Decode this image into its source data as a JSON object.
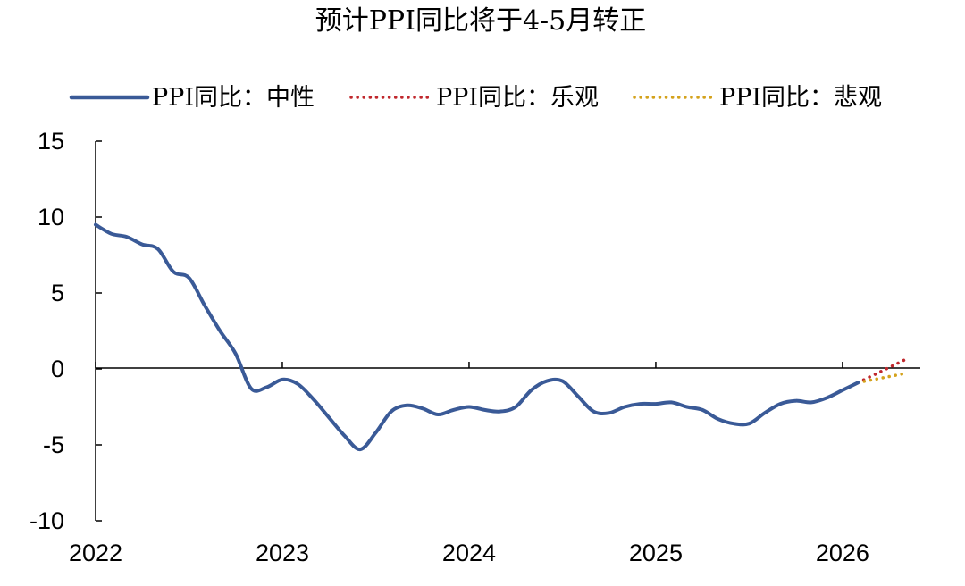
{
  "chart_data": {
    "type": "line",
    "title": "预计PPI同比将于4-5月转正",
    "xlabel": "",
    "ylabel": "",
    "ylim": [
      -10,
      15
    ],
    "yticks": [
      15,
      10,
      5,
      0,
      -5,
      -10
    ],
    "xlim": [
      "2022-01",
      "2026-06"
    ],
    "xticks": [
      "2022",
      "2023",
      "2024",
      "2025",
      "2026"
    ],
    "grid": false,
    "legend_position": "top",
    "series": [
      {
        "name": "PPI同比：中性",
        "style": "solid",
        "color": "#3A5A97",
        "points": [
          [
            "2022-01",
            9.5
          ],
          [
            "2022-02",
            8.9
          ],
          [
            "2022-03",
            8.7
          ],
          [
            "2022-04",
            8.2
          ],
          [
            "2022-05",
            7.9
          ],
          [
            "2022-06",
            6.4
          ],
          [
            "2022-07",
            6.0
          ],
          [
            "2022-08",
            4.2
          ],
          [
            "2022-09",
            2.5
          ],
          [
            "2022-10",
            1.0
          ],
          [
            "2022-11",
            -1.3
          ],
          [
            "2022-12",
            -1.2
          ],
          [
            "2023-01",
            -0.7
          ],
          [
            "2023-02",
            -1.0
          ],
          [
            "2023-03",
            -2.0
          ],
          [
            "2023-04",
            -3.2
          ],
          [
            "2023-05",
            -4.4
          ],
          [
            "2023-06",
            -5.3
          ],
          [
            "2023-07",
            -4.2
          ],
          [
            "2023-08",
            -2.8
          ],
          [
            "2023-09",
            -2.4
          ],
          [
            "2023-10",
            -2.6
          ],
          [
            "2023-11",
            -3.0
          ],
          [
            "2023-12",
            -2.7
          ],
          [
            "2024-01",
            -2.5
          ],
          [
            "2024-02",
            -2.7
          ],
          [
            "2024-03",
            -2.8
          ],
          [
            "2024-04",
            -2.5
          ],
          [
            "2024-05",
            -1.4
          ],
          [
            "2024-06",
            -0.8
          ],
          [
            "2024-07",
            -0.8
          ],
          [
            "2024-08",
            -1.8
          ],
          [
            "2024-09",
            -2.8
          ],
          [
            "2024-10",
            -2.9
          ],
          [
            "2024-11",
            -2.5
          ],
          [
            "2024-12",
            -2.3
          ],
          [
            "2025-01",
            -2.3
          ],
          [
            "2025-02",
            -2.2
          ],
          [
            "2025-03",
            -2.5
          ],
          [
            "2025-04",
            -2.7
          ],
          [
            "2025-05",
            -3.3
          ],
          [
            "2025-06",
            -3.6
          ],
          [
            "2025-07",
            -3.6
          ],
          [
            "2025-08",
            -2.9
          ],
          [
            "2025-09",
            -2.3
          ],
          [
            "2025-10",
            -2.1
          ],
          [
            "2025-11",
            -2.2
          ],
          [
            "2025-12",
            -1.9
          ],
          [
            "2026-01",
            -1.4
          ],
          [
            "2026-02",
            -0.9
          ]
        ]
      },
      {
        "name": "PPI同比：乐观",
        "style": "dotted",
        "color": "#C0282D",
        "points": [
          [
            "2026-02",
            -0.9
          ],
          [
            "2026-03",
            -0.4
          ],
          [
            "2026-04",
            0.1
          ],
          [
            "2026-05",
            0.6
          ]
        ]
      },
      {
        "name": "PPI同比：悲观",
        "style": "dotted",
        "color": "#D4A21C",
        "points": [
          [
            "2026-02",
            -0.9
          ],
          [
            "2026-03",
            -0.7
          ],
          [
            "2026-04",
            -0.5
          ],
          [
            "2026-05",
            -0.3
          ]
        ]
      }
    ]
  }
}
